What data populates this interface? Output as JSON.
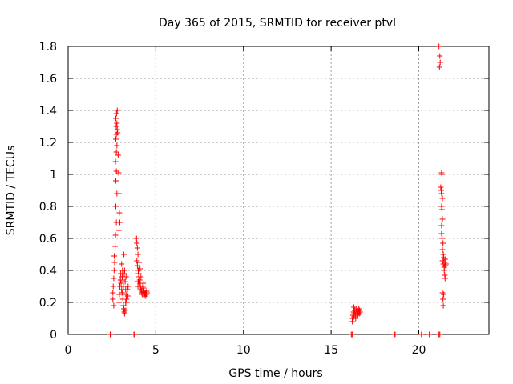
{
  "chart_data": {
    "type": "scatter",
    "title": "Day 365 of 2015, SRMTID for receiver ptvl",
    "xlabel": "GPS time / hours",
    "ylabel": "SRMTID / TECUs",
    "xlim": [
      0,
      24
    ],
    "ylim": [
      0,
      1.8
    ],
    "xticks": [
      0,
      5,
      10,
      15,
      20
    ],
    "xtick_labels": [
      "0",
      "5",
      "10",
      "15",
      "20"
    ],
    "yticks": [
      0,
      0.2,
      0.4,
      0.6,
      0.8,
      1.0,
      1.2,
      1.4,
      1.6,
      1.8
    ],
    "ytick_labels": [
      "0",
      "0.2",
      "0.4",
      "0.6",
      "0.8",
      "1",
      "1.2",
      "1.4",
      "1.6",
      "1.8"
    ],
    "grid": true,
    "marker": "+",
    "marker_color": "#ff0000",
    "series": [
      {
        "name": "SRMTID",
        "points": [
          [
            2.4,
            0.0
          ],
          [
            2.45,
            0.0
          ],
          [
            3.75,
            0.0
          ],
          [
            3.8,
            0.0
          ],
          [
            16.15,
            0.0
          ],
          [
            16.2,
            0.0
          ],
          [
            18.6,
            0.0
          ],
          [
            18.65,
            0.0
          ],
          [
            20.15,
            0.0
          ],
          [
            20.6,
            0.0
          ],
          [
            21.15,
            0.0
          ],
          [
            21.2,
            0.0
          ],
          [
            2.55,
            0.22
          ],
          [
            2.55,
            0.26
          ],
          [
            2.57,
            0.3
          ],
          [
            2.6,
            0.35
          ],
          [
            2.62,
            0.4
          ],
          [
            2.65,
            0.45
          ],
          [
            2.63,
            0.49
          ],
          [
            2.6,
            0.18
          ],
          [
            2.68,
            0.55
          ],
          [
            2.7,
            0.62
          ],
          [
            2.75,
            0.7
          ],
          [
            2.72,
            0.8
          ],
          [
            2.78,
            0.88
          ],
          [
            2.72,
            0.96
          ],
          [
            2.75,
            1.02
          ],
          [
            2.7,
            1.08
          ],
          [
            2.75,
            1.14
          ],
          [
            2.78,
            1.18
          ],
          [
            2.72,
            1.22
          ],
          [
            2.75,
            1.25
          ],
          [
            2.8,
            1.28
          ],
          [
            2.74,
            1.3
          ],
          [
            2.78,
            1.32
          ],
          [
            2.72,
            1.35
          ],
          [
            2.76,
            1.38
          ],
          [
            2.8,
            1.4
          ],
          [
            2.82,
            1.26
          ],
          [
            2.85,
            1.12
          ],
          [
            2.88,
            1.01
          ],
          [
            2.9,
            0.88
          ],
          [
            2.92,
            0.76
          ],
          [
            2.95,
            0.7
          ],
          [
            2.9,
            0.65
          ],
          [
            2.9,
            0.2
          ],
          [
            2.92,
            0.25
          ],
          [
            2.95,
            0.3
          ],
          [
            2.98,
            0.34
          ],
          [
            3.0,
            0.38
          ],
          [
            3.02,
            0.32
          ],
          [
            3.05,
            0.28
          ],
          [
            3.08,
            0.36
          ],
          [
            3.1,
            0.4
          ],
          [
            3.12,
            0.22
          ],
          [
            3.15,
            0.18
          ],
          [
            3.18,
            0.16
          ],
          [
            3.2,
            0.14
          ],
          [
            3.22,
            0.13
          ],
          [
            3.25,
            0.15
          ],
          [
            3.28,
            0.2
          ],
          [
            3.3,
            0.25
          ],
          [
            3.15,
            0.3
          ],
          [
            3.2,
            0.38
          ],
          [
            3.25,
            0.33
          ],
          [
            3.28,
            0.28
          ],
          [
            3.32,
            0.22
          ],
          [
            3.35,
            0.2
          ],
          [
            3.18,
            0.5
          ],
          [
            3.05,
            0.44
          ],
          [
            3.38,
            0.28
          ],
          [
            3.4,
            0.24
          ],
          [
            3.42,
            0.3
          ],
          [
            3.3,
            0.36
          ],
          [
            3.22,
            0.4
          ],
          [
            3.12,
            0.34
          ],
          [
            3.08,
            0.26
          ],
          [
            3.9,
            0.6
          ],
          [
            3.92,
            0.57
          ],
          [
            3.95,
            0.54
          ],
          [
            3.98,
            0.5
          ],
          [
            3.92,
            0.46
          ],
          [
            3.95,
            0.43
          ],
          [
            4.0,
            0.4
          ],
          [
            4.02,
            0.38
          ],
          [
            4.05,
            0.36
          ],
          [
            4.08,
            0.34
          ],
          [
            4.1,
            0.32
          ],
          [
            4.12,
            0.3
          ],
          [
            4.15,
            0.28
          ],
          [
            4.18,
            0.27
          ],
          [
            4.2,
            0.26
          ],
          [
            4.22,
            0.25
          ],
          [
            4.25,
            0.3
          ],
          [
            4.28,
            0.32
          ],
          [
            4.3,
            0.29
          ],
          [
            4.32,
            0.27
          ],
          [
            4.35,
            0.25
          ],
          [
            4.38,
            0.26
          ],
          [
            4.4,
            0.24
          ],
          [
            4.42,
            0.26
          ],
          [
            4.45,
            0.25
          ],
          [
            4.48,
            0.27
          ],
          [
            4.5,
            0.26
          ],
          [
            4.05,
            0.45
          ],
          [
            4.1,
            0.41
          ],
          [
            4.15,
            0.36
          ],
          [
            4.0,
            0.33
          ],
          [
            3.98,
            0.3
          ],
          [
            16.2,
            0.08
          ],
          [
            16.22,
            0.1
          ],
          [
            16.25,
            0.12
          ],
          [
            16.28,
            0.14
          ],
          [
            16.3,
            0.11
          ],
          [
            16.32,
            0.13
          ],
          [
            16.35,
            0.15
          ],
          [
            16.38,
            0.12
          ],
          [
            16.4,
            0.1
          ],
          [
            16.42,
            0.14
          ],
          [
            16.45,
            0.16
          ],
          [
            16.48,
            0.13
          ],
          [
            16.5,
            0.15
          ],
          [
            16.52,
            0.12
          ],
          [
            16.55,
            0.14
          ],
          [
            16.58,
            0.16
          ],
          [
            16.6,
            0.13
          ],
          [
            16.62,
            0.15
          ],
          [
            16.65,
            0.14
          ],
          [
            16.3,
            0.17
          ],
          [
            21.15,
            1.8
          ],
          [
            21.2,
            1.74
          ],
          [
            21.22,
            1.7
          ],
          [
            21.18,
            1.67
          ],
          [
            21.3,
            1.01
          ],
          [
            21.32,
            1.0
          ],
          [
            21.25,
            0.92
          ],
          [
            21.28,
            0.9
          ],
          [
            21.3,
            0.88
          ],
          [
            21.35,
            0.85
          ],
          [
            21.3,
            0.8
          ],
          [
            21.32,
            0.78
          ],
          [
            21.35,
            0.72
          ],
          [
            21.3,
            0.68
          ],
          [
            21.33,
            0.6
          ],
          [
            21.38,
            0.57
          ],
          [
            21.35,
            0.53
          ],
          [
            21.4,
            0.5
          ],
          [
            21.42,
            0.48
          ],
          [
            21.35,
            0.46
          ],
          [
            21.4,
            0.44
          ],
          [
            21.45,
            0.42
          ],
          [
            21.48,
            0.45
          ],
          [
            21.5,
            0.47
          ],
          [
            21.52,
            0.43
          ],
          [
            21.45,
            0.4
          ],
          [
            21.48,
            0.37
          ],
          [
            21.5,
            0.35
          ],
          [
            21.55,
            0.44
          ],
          [
            21.35,
            0.26
          ],
          [
            21.38,
            0.22
          ],
          [
            21.4,
            0.18
          ],
          [
            21.42,
            0.25
          ],
          [
            21.3,
            0.63
          ]
        ]
      }
    ]
  }
}
